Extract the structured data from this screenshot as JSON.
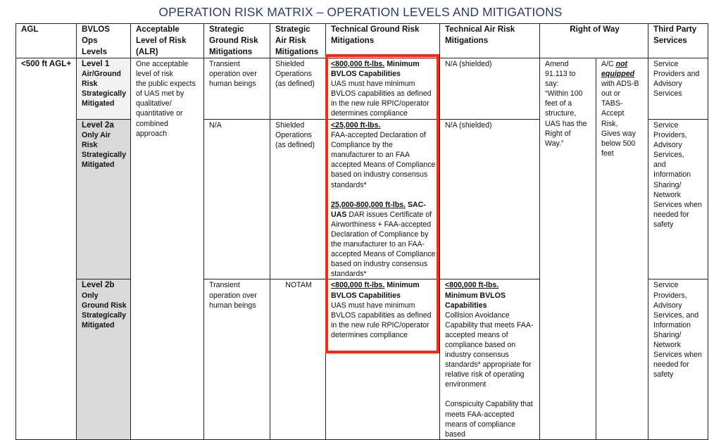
{
  "title": "OPERATION RISK MATRIX – OPERATION LEVELS AND MITIGATIONS",
  "headers": {
    "agl": "AGL",
    "bvlos": [
      "BVLOS",
      "Ops",
      "Levels"
    ],
    "alr": [
      "Acceptable",
      "Level of Risk",
      "(ALR)"
    ],
    "sgrm": [
      "Strategic",
      "Ground Risk",
      "Mitigations"
    ],
    "sarm": [
      "Strategic",
      "Air Risk",
      "Mitigations"
    ],
    "tgrm": [
      "Technical Ground Risk",
      "Mitigations"
    ],
    "tarm": [
      "Technical Air Risk",
      "Mitigations"
    ],
    "row": "Right of Way",
    "tps": [
      "Third Party",
      "Services"
    ]
  },
  "agl_value": "<500 ft AGL+",
  "alr_value": [
    "One acceptable",
    "level of risk",
    "the public expects",
    "of UAS met by",
    "qualitative/",
    "quantitative or",
    "combined",
    "approach"
  ],
  "right_of_way": {
    "col1": [
      "Amend",
      "91.113 to",
      "say:",
      "“Within 100",
      "feet of a",
      "structure,",
      "UAS has the",
      "Right of",
      "Way.”"
    ],
    "col2_prefix": "A/C ",
    "col2_not": "not",
    "col2_equipped": "equipped",
    "col2_rest": [
      "with ADS-B",
      "out or",
      "TABS-",
      "Accept",
      "Risk,",
      "Gives way",
      "below 500",
      "feet"
    ]
  },
  "rows": [
    {
      "level": "Level 1",
      "level_desc": [
        "Air/Ground",
        "Risk",
        "Strategically",
        "Mitigated"
      ],
      "sgrm": [
        "Transient",
        "operation over",
        "human beings"
      ],
      "sarm": [
        "Shielded",
        "Operations",
        "(as defined)"
      ],
      "tgrm": {
        "u": "<800,000 ft-lbs.",
        "b": " Minimum BVLOS Capabilities",
        "text": "UAS must have minimum BVLOS capabilities as defined in the new rule RPIC/operator determines compliance"
      },
      "tarm": "N/A (shielded)",
      "tps": [
        "Service",
        "Providers and",
        "Advisory",
        "Services"
      ]
    },
    {
      "level": "Level 2a",
      "level_desc": [
        "Only Air",
        "Risk",
        "Strategically",
        "Mitigated"
      ],
      "sgrm": [
        "N/A"
      ],
      "sarm": [
        "Shielded",
        "Operations",
        "(as defined)"
      ],
      "tgrm": {
        "u": "<25,000 ft-lbs.",
        "text": "FAA-accepted Declaration of Compliance by the manufacturer to an FAA accepted Means of Compliance based on industry consensus standards*",
        "u2": "25,000-800,000 ft-lbs.",
        "b2": " SAC-UAS",
        "text2": " DAR issues Certificate of Airworthiness + FAA-accepted Declaration of Compliance by the manufacturer to an FAA-accepted Means of Compliance based on industry consensus standards*"
      },
      "tarm": "N/A (shielded)",
      "tps": [
        "Service",
        "Providers,",
        "Advisory",
        "Services,",
        "and",
        "Information",
        "Sharing/",
        "Network",
        "Services when",
        "needed for",
        "safety"
      ]
    },
    {
      "level": "Level 2b",
      "level_desc": [
        "Only",
        "Ground Risk",
        "Strategically",
        "Mitigated"
      ],
      "sgrm": [
        "Transient",
        "operation over",
        "human beings"
      ],
      "sarm": [
        "NOTAM"
      ],
      "tgrm": {
        "u": "<800,000 ft-lbs.",
        "b": " Minimum BVLOS Capabilities",
        "text": "UAS must have minimum BVLOS capabilities as defined in the new rule RPIC/operator determines compliance"
      },
      "tarm": {
        "u": "<800,000 ft-lbs.",
        "b": "Minimum BVLOS Capabilities",
        "text": "Collision Avoidance Capability that meets FAA-accepted means of compliance based on industry consensus standards* appropriate for relative risk of operating environment",
        "text2": "Conspicuity Capability that meets FAA-accepted means of compliance based"
      },
      "tps": [
        "Service",
        "Providers,",
        "Advisory",
        "Services, and",
        "Information",
        "Sharing/",
        "Network",
        "Services when",
        "needed for",
        "safety"
      ]
    }
  ],
  "highlight_color": "#ff2a0a",
  "title_color": "#2c3e66"
}
